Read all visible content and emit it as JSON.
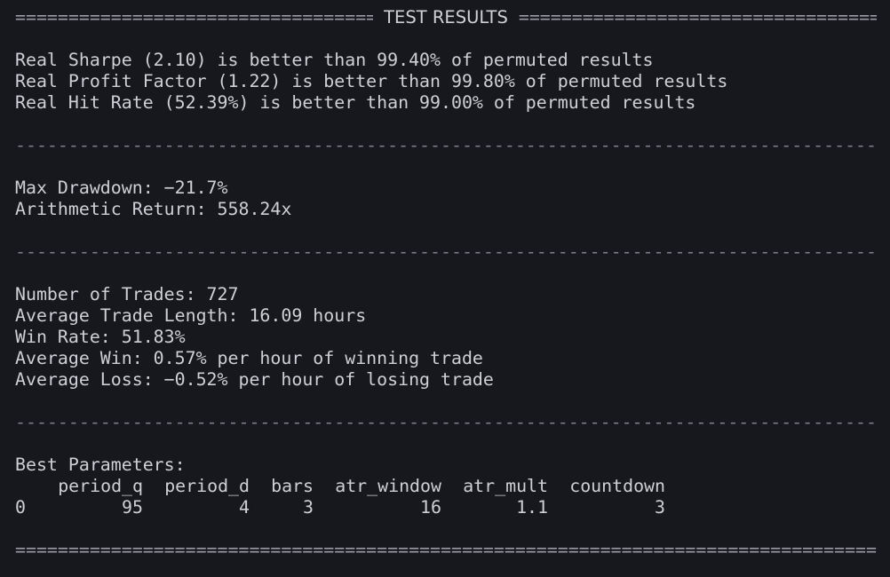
{
  "header": {
    "title": "TEST RESULTS",
    "fill_char": "================================================================"
  },
  "rule_dash": "----------------------------------------------------------------------------------------------------",
  "rule_eq": "====================================================================================================",
  "permutation": {
    "lines": [
      "Real Sharpe (2.10) is better than 99.40% of permuted results",
      "Real Profit Factor (1.22) is better than 99.80% of permuted results",
      "Real Hit Rate (52.39%) is better than 99.00% of permuted results"
    ]
  },
  "performance": {
    "max_drawdown": "Max Drawdown: −21.7%",
    "arithmetic_return": "Arithmetic Return: 558.24x"
  },
  "trades": {
    "number": "Number of Trades: 727",
    "avg_length": "Average Trade Length: 16.09 hours",
    "win_rate": "Win Rate: 51.83%",
    "avg_win": "Average Win: 0.57% per hour of winning trade",
    "avg_loss": "Average Loss: −0.52% per hour of losing trade"
  },
  "parameters": {
    "label": "Best Parameters:",
    "columns": [
      "",
      "period_q",
      "period_d",
      "bars",
      "atr_window",
      "atr_mult",
      "countdown"
    ],
    "row": [
      "0",
      "95",
      "4",
      "3",
      "16",
      "1.1",
      "3"
    ]
  }
}
